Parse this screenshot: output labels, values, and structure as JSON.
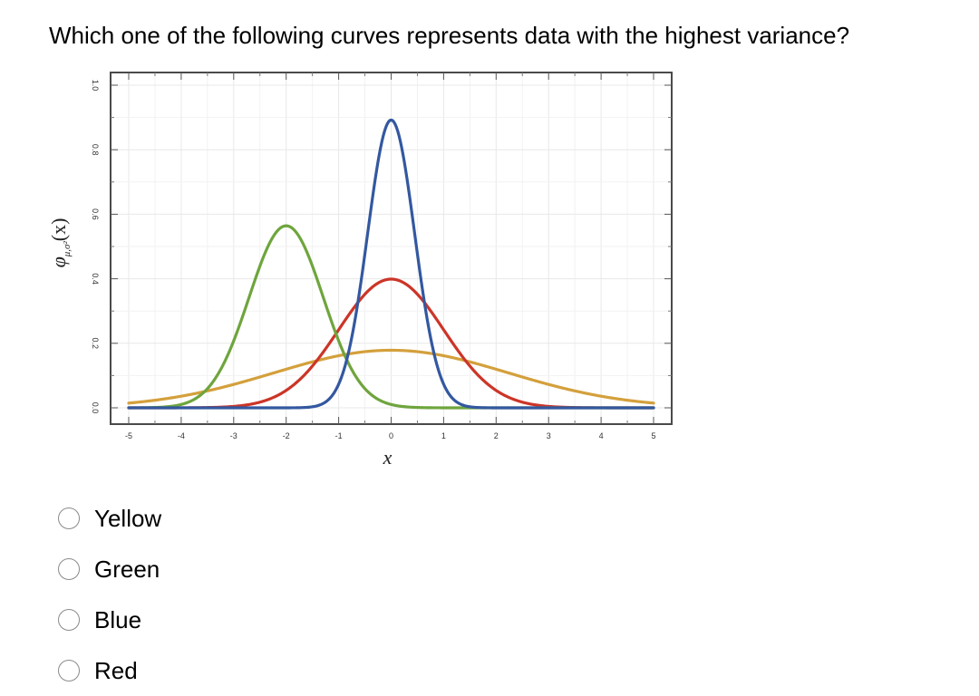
{
  "question": {
    "text": "Which one of the following curves represents data with the highest variance?"
  },
  "chart_data": {
    "type": "line",
    "xlabel": "x",
    "ylabel_main": "φ",
    "ylabel_sub": "μ,σ²",
    "ylabel_arg": "(x)",
    "xlim": [
      -5,
      5
    ],
    "ylim": [
      0,
      1.0
    ],
    "xticks": [
      "-5",
      "-4",
      "-3",
      "-2",
      "-1",
      "0",
      "1",
      "2",
      "3",
      "4",
      "5"
    ],
    "yticks": [
      "0.0",
      "0.2",
      "0.4",
      "0.6",
      "0.8",
      "1.0"
    ],
    "grid": true,
    "series": [
      {
        "name": "Yellow",
        "mu": 0,
        "sigma2": 5.0,
        "color": "#d4a03c"
      },
      {
        "name": "Red",
        "mu": 0,
        "sigma2": 1.0,
        "color": "#cc3528"
      },
      {
        "name": "Green",
        "mu": -2,
        "sigma2": 0.5,
        "color": "#6ea53d"
      },
      {
        "name": "Blue",
        "mu": 0,
        "sigma2": 0.2,
        "color": "#3358a0"
      }
    ]
  },
  "options": [
    {
      "label": "Yellow"
    },
    {
      "label": "Green"
    },
    {
      "label": "Blue"
    },
    {
      "label": "Red"
    }
  ]
}
